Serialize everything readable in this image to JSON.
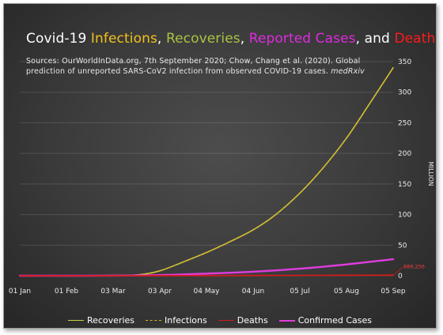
{
  "title": {
    "prefix": "Covid-19 ",
    "infections": "Infections",
    "sep1": ", ",
    "recoveries": "Recoveries",
    "sep2": ", ",
    "reported": "Reported Cases",
    "sep3": ", and ",
    "deaths": "Deaths"
  },
  "sources": {
    "text": "Sources: OurWorldInData.org, 7th September 2020; Chow, Chang et al. (2020). Global prediction of unreported SARS-CoV2 infection from observed COVID-19 cases. ",
    "journal": "medRxiv"
  },
  "colors": {
    "infections": "#f2c21b",
    "recoveries": "#a8c440",
    "reported": "#e02ae0",
    "deaths": "#ff1a1a",
    "recoveries_line": "#c8d14a",
    "infections_line": "#e0b020",
    "deaths_line": "#d01c1c",
    "confirmed_line": "#e03ce0"
  },
  "chart_data": {
    "type": "line",
    "xlabel": "",
    "ylabel": "MILLION",
    "ylim": [
      0,
      350
    ],
    "yticks": [
      0,
      50,
      100,
      150,
      200,
      250,
      300,
      350
    ],
    "grid": true,
    "legend_position": "bottom",
    "x_ticks": [
      "01 Jan",
      "01 Feb",
      "03 Mar",
      "03 Apr",
      "04 May",
      "04 Jun",
      "05 Jul",
      "05 Aug",
      "05 Sep"
    ],
    "series": [
      {
        "name": "Recoveries",
        "style": "solid",
        "x": [
          "01 Jan",
          "01 Feb",
          "03 Mar",
          "20 Mar",
          "03 Apr",
          "18 Apr",
          "04 May",
          "19 May",
          "04 Jun",
          "19 Jun",
          "05 Jul",
          "20 Jul",
          "05 Aug",
          "20 Aug",
          "05 Sep"
        ],
        "values": [
          0,
          0,
          0.5,
          1.5,
          8,
          22,
          38,
          55,
          75,
          100,
          135,
          175,
          225,
          280,
          340
        ]
      },
      {
        "name": "Infections",
        "style": "dashed",
        "x": [
          "01 Jan",
          "01 Feb",
          "03 Mar",
          "20 Mar",
          "03 Apr",
          "18 Apr",
          "04 May",
          "19 May",
          "04 Jun",
          "19 Jun",
          "05 Jul",
          "20 Jul",
          "05 Aug",
          "20 Aug",
          "05 Sep"
        ],
        "values": [
          0,
          0,
          0.5,
          1.5,
          8,
          22,
          38,
          55,
          75,
          100,
          135,
          175,
          225,
          280,
          340
        ]
      },
      {
        "name": "Deaths",
        "style": "solid",
        "x": [
          "01 Jan",
          "01 Feb",
          "03 Mar",
          "03 Apr",
          "04 May",
          "04 Jun",
          "05 Jul",
          "05 Aug",
          "05 Sep"
        ],
        "values": [
          0,
          0,
          0,
          0.06,
          0.25,
          0.38,
          0.53,
          0.7,
          0.89
        ]
      },
      {
        "name": "Confirmed Cases",
        "style": "solid",
        "x": [
          "01 Jan",
          "01 Feb",
          "03 Mar",
          "03 Apr",
          "04 May",
          "04 Jun",
          "05 Jul",
          "05 Aug",
          "05 Sep"
        ],
        "values": [
          0,
          0.01,
          0.1,
          1,
          3.5,
          6.5,
          11.5,
          18.5,
          27
        ]
      }
    ],
    "annotations": [
      {
        "text": "889,256",
        "series": "Deaths",
        "at": "05 Sep"
      }
    ]
  }
}
